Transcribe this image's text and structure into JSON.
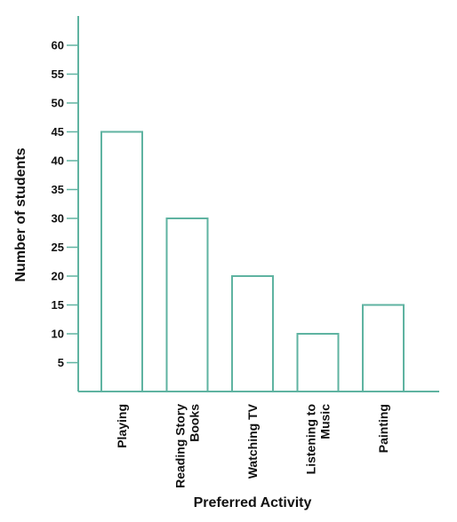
{
  "chart_data": {
    "type": "bar",
    "title": "",
    "xlabel": "Preferred Activity",
    "ylabel": "Number of students",
    "categories": [
      [
        "Playing"
      ],
      [
        "Reading Story",
        "Books"
      ],
      [
        "Watching TV"
      ],
      [
        "Listening to",
        "Music"
      ],
      [
        "Painting"
      ]
    ],
    "values": [
      45,
      30,
      20,
      10,
      15
    ],
    "yticks": [
      5,
      10,
      15,
      20,
      25,
      30,
      35,
      40,
      45,
      50,
      55,
      60
    ],
    "ylim": [
      0,
      60
    ],
    "grid": false,
    "legend": "none",
    "colors": {
      "axis": "#5fb3a1",
      "bar_stroke": "#5fb3a1",
      "bar_fill": "#ffffff",
      "text": "#111111"
    }
  }
}
